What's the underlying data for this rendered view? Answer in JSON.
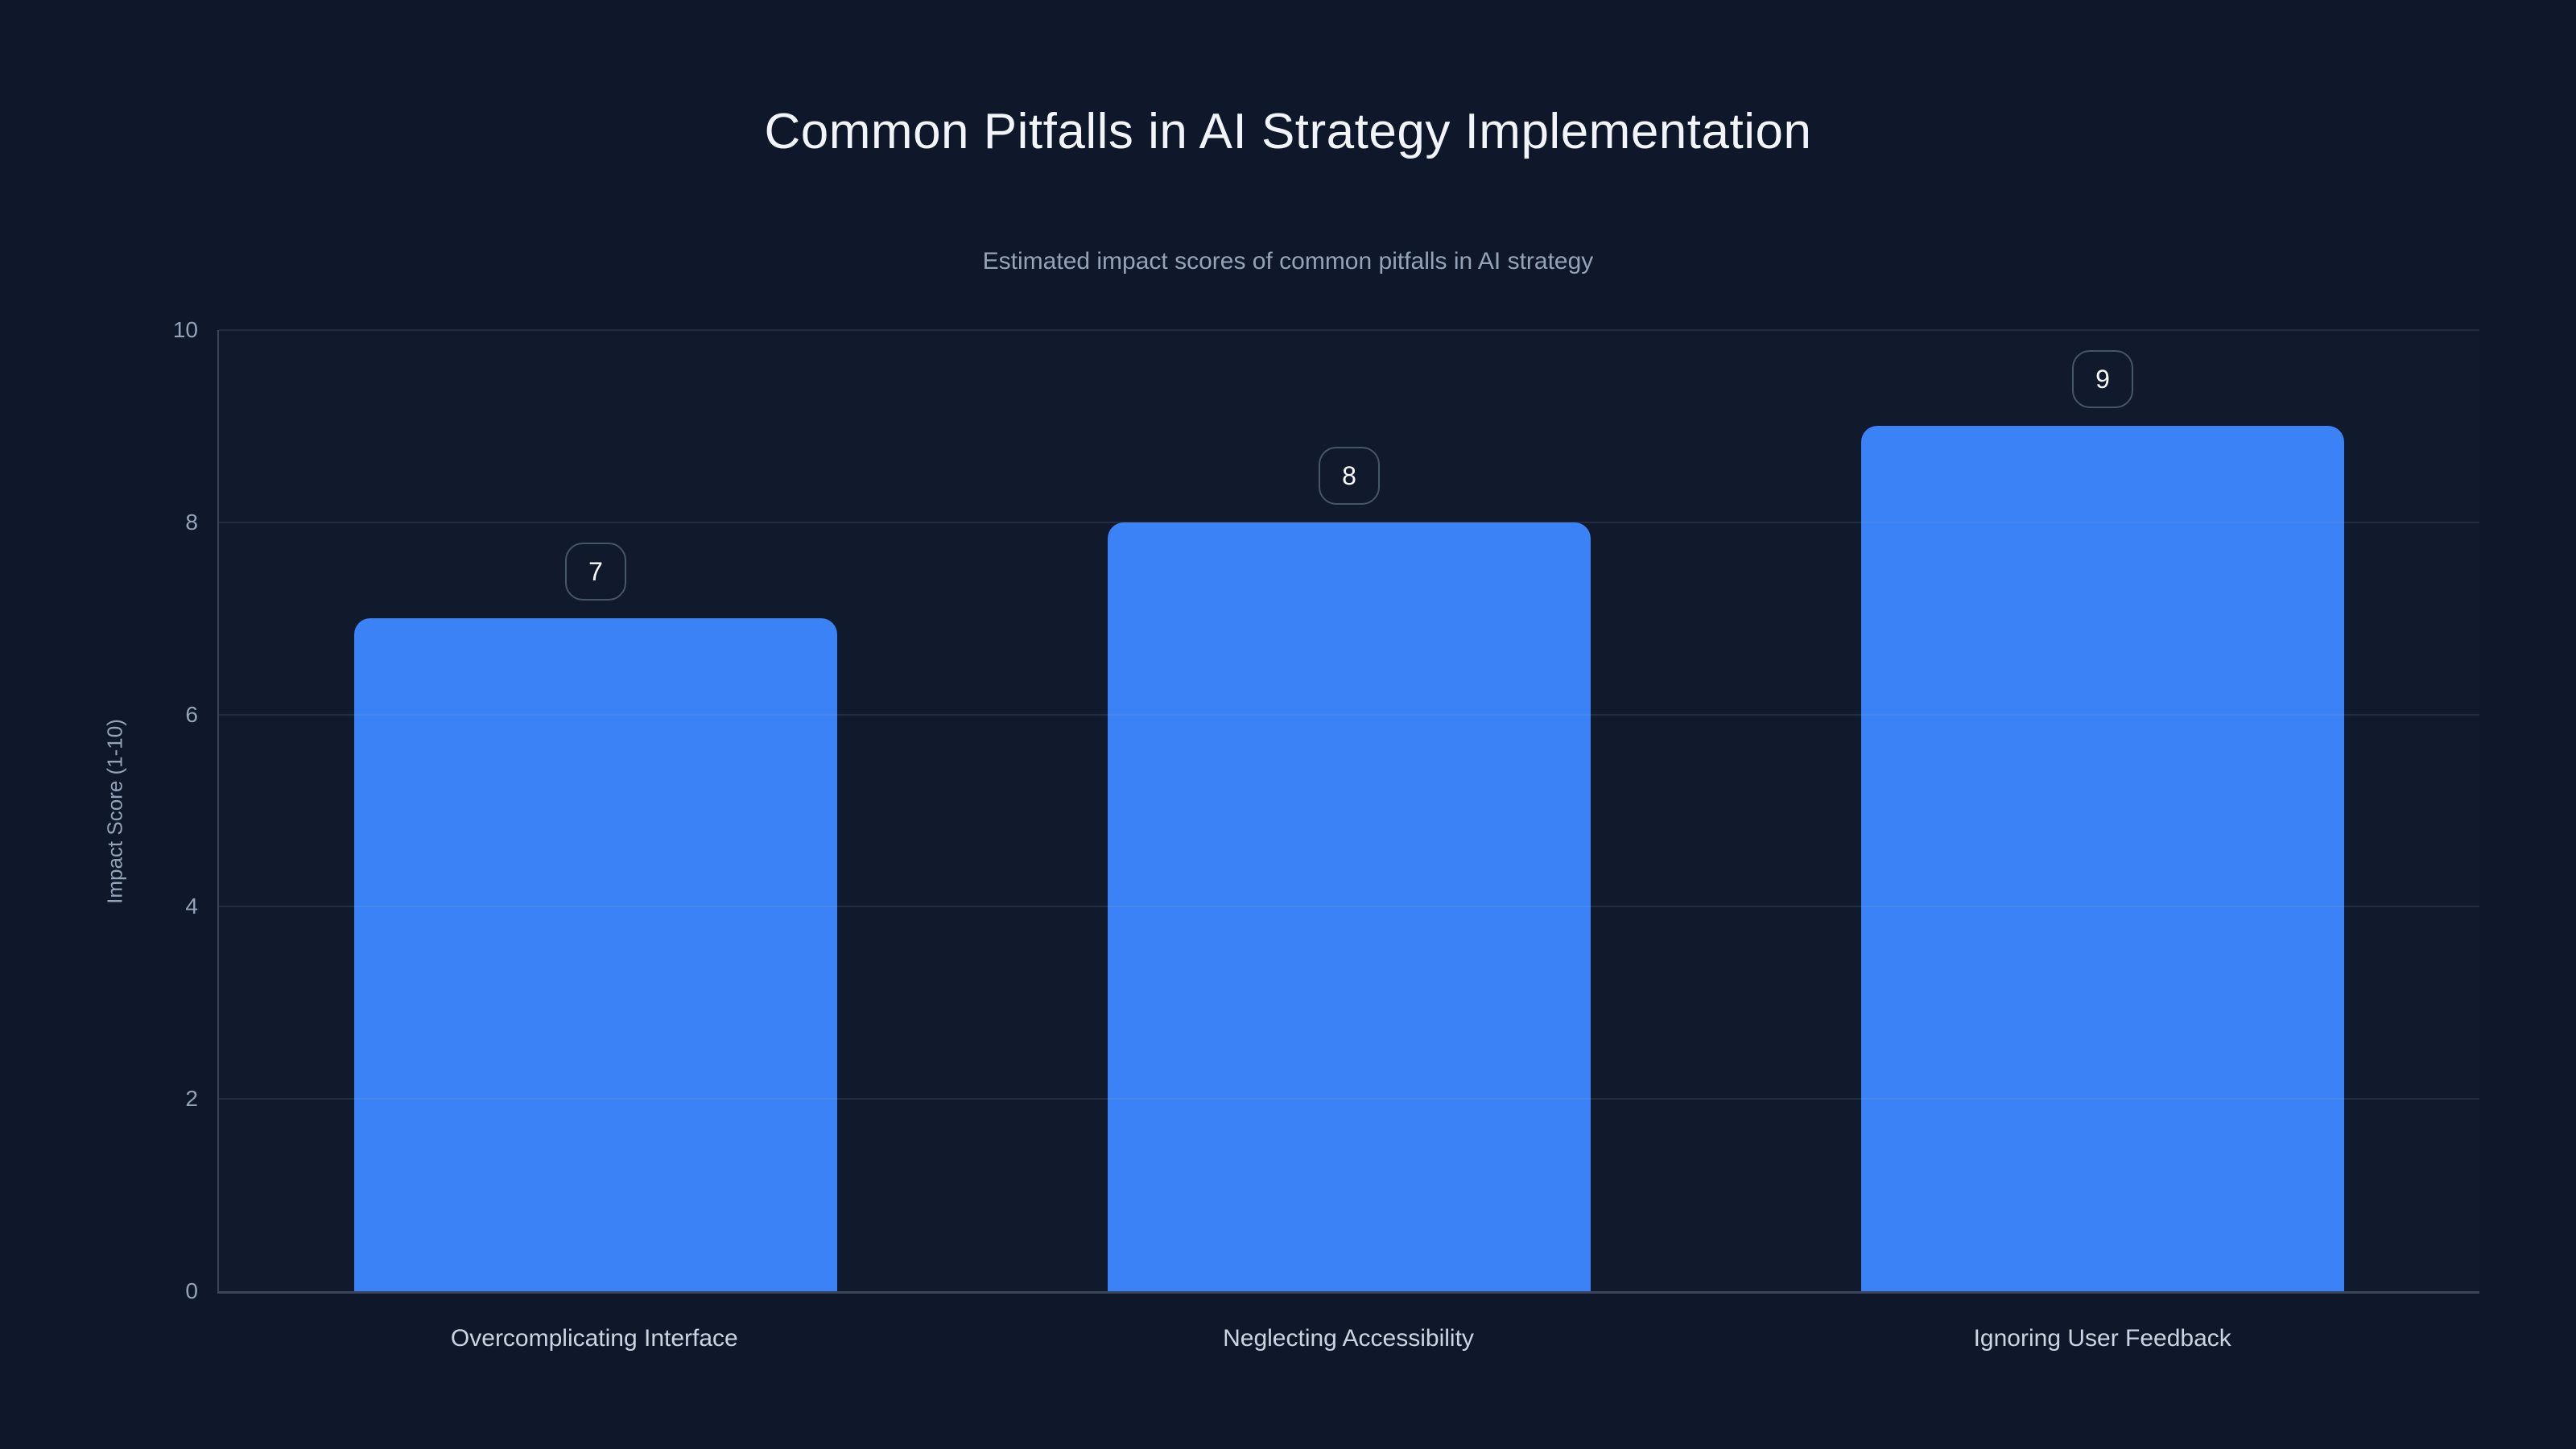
{
  "chart_data": {
    "type": "bar",
    "title": "Common Pitfalls in AI Strategy Implementation",
    "subtitle": "Estimated impact scores of common pitfalls in AI strategy",
    "categories": [
      "Overcomplicating Interface",
      "Neglecting Accessibility",
      "Ignoring User Feedback"
    ],
    "values": [
      7,
      8,
      9
    ],
    "value_labels": [
      "7",
      "8",
      "9"
    ],
    "xlabel": "",
    "ylabel": "Impact Score (1-10)",
    "ylim": [
      0,
      10
    ],
    "yticks": [
      0,
      2,
      4,
      6,
      8,
      10
    ],
    "grid": true,
    "legend": false,
    "colors": {
      "background": "#0f172a",
      "bar": "#3b82f6",
      "title": "#f1f5f9",
      "subtitle": "#94a3b8",
      "tick": "#94a3b8",
      "category_label": "#cbd5e1",
      "grid": "rgba(148,163,184,0.14)",
      "axis": "rgba(148,163,184,0.32)",
      "badge_border": "#475569",
      "badge_text": "#f8fafc"
    }
  }
}
